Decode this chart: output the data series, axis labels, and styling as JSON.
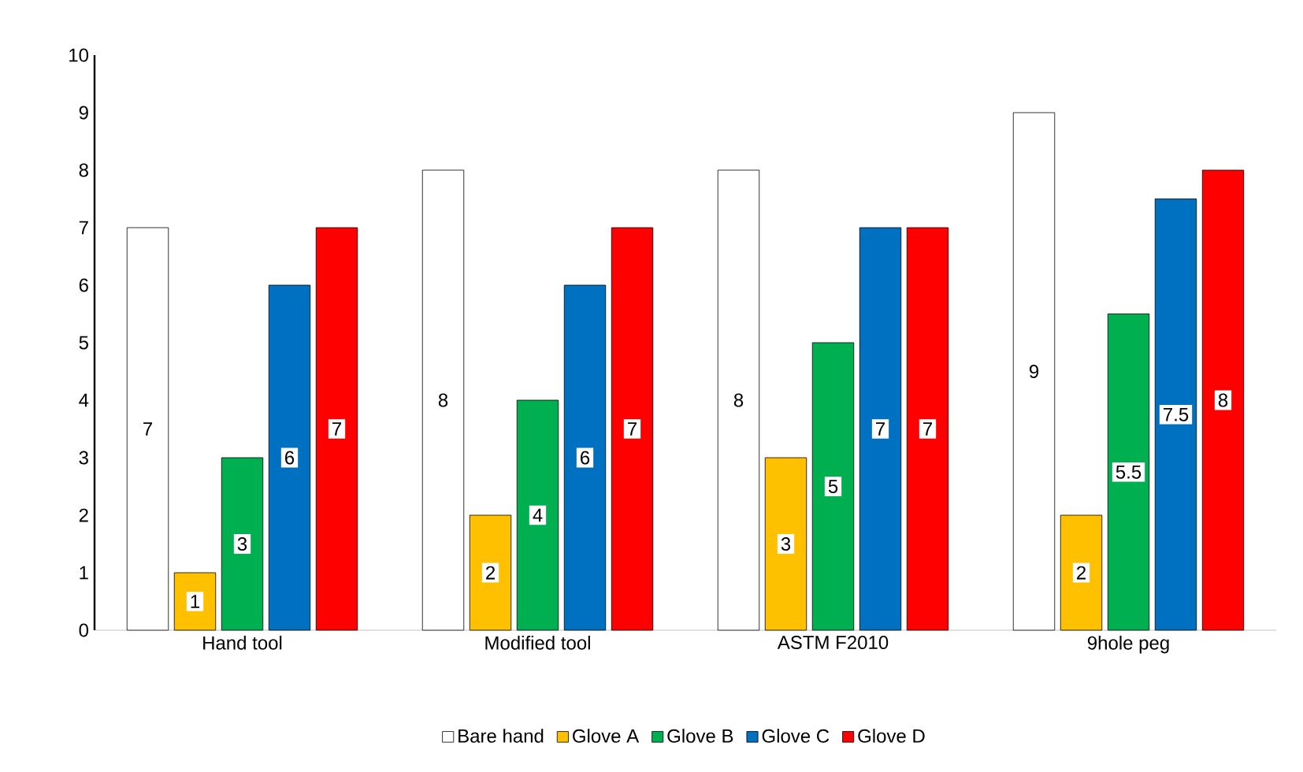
{
  "chart_data": {
    "type": "bar",
    "categories": [
      "Hand tool",
      "Modified tool",
      "ASTM F2010",
      "9hole peg"
    ],
    "series": [
      {
        "name": "Bare hand",
        "color": "#ffffff",
        "values": [
          7,
          8,
          8,
          9
        ]
      },
      {
        "name": "Glove A",
        "color": "#ffc000",
        "values": [
          1,
          2,
          3,
          2
        ]
      },
      {
        "name": "Glove B",
        "color": "#00b050",
        "values": [
          3,
          4,
          5,
          5.5
        ]
      },
      {
        "name": "Glove C",
        "color": "#0070c0",
        "values": [
          6,
          6,
          7,
          7.5
        ]
      },
      {
        "name": "Glove D",
        "color": "#ff0000",
        "values": [
          7,
          7,
          7,
          8
        ]
      }
    ],
    "ylim": [
      0,
      10
    ],
    "yticks": [
      0,
      1,
      2,
      3,
      4,
      5,
      6,
      7,
      8,
      9,
      10
    ],
    "data_labels": true,
    "legend": "bottom",
    "grid": false
  }
}
